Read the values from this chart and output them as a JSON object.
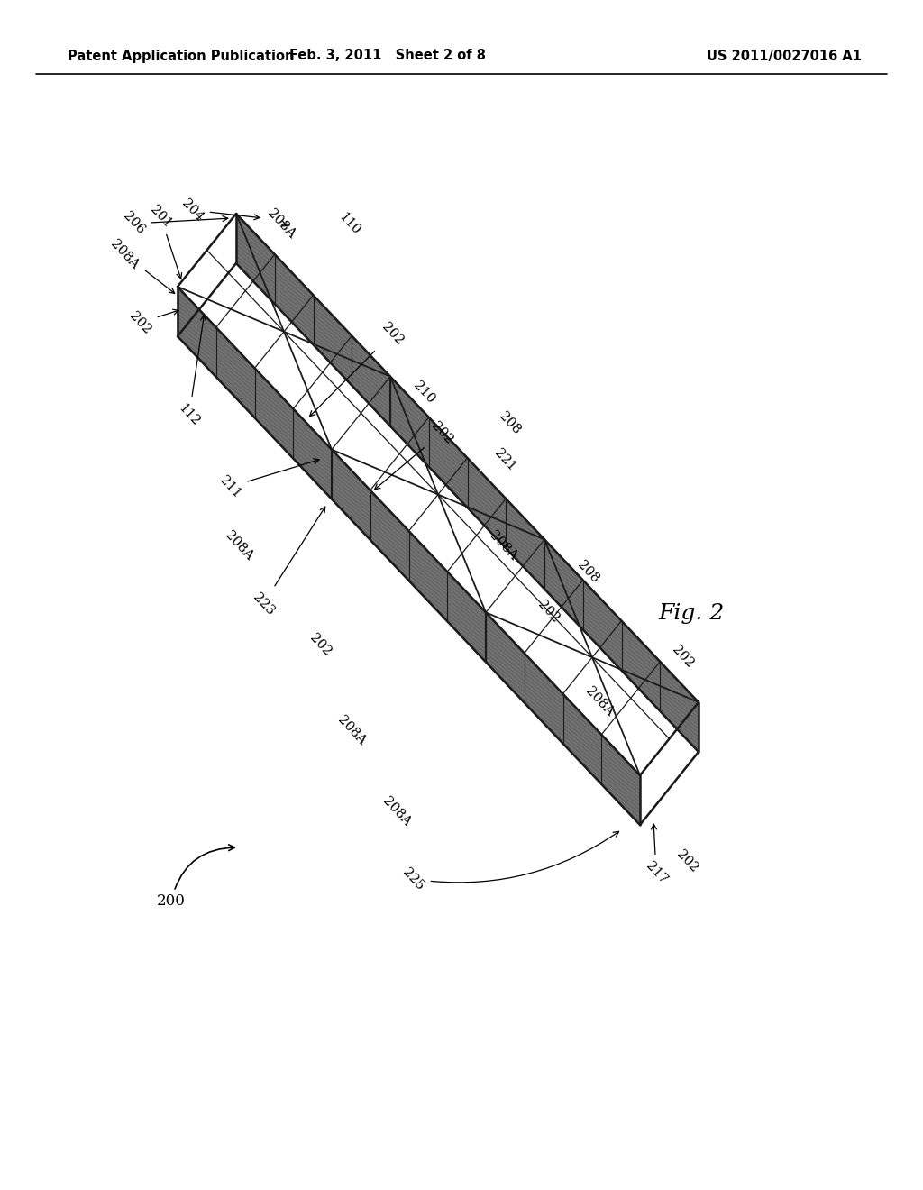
{
  "header_left": "Patent Application Publication",
  "header_mid": "Feb. 3, 2011   Sheet 2 of 8",
  "header_right": "US 2011/0027016 A1",
  "fig_label": "Fig. 2",
  "bg_color": "#ffffff",
  "line_color": "#1a1a1a"
}
